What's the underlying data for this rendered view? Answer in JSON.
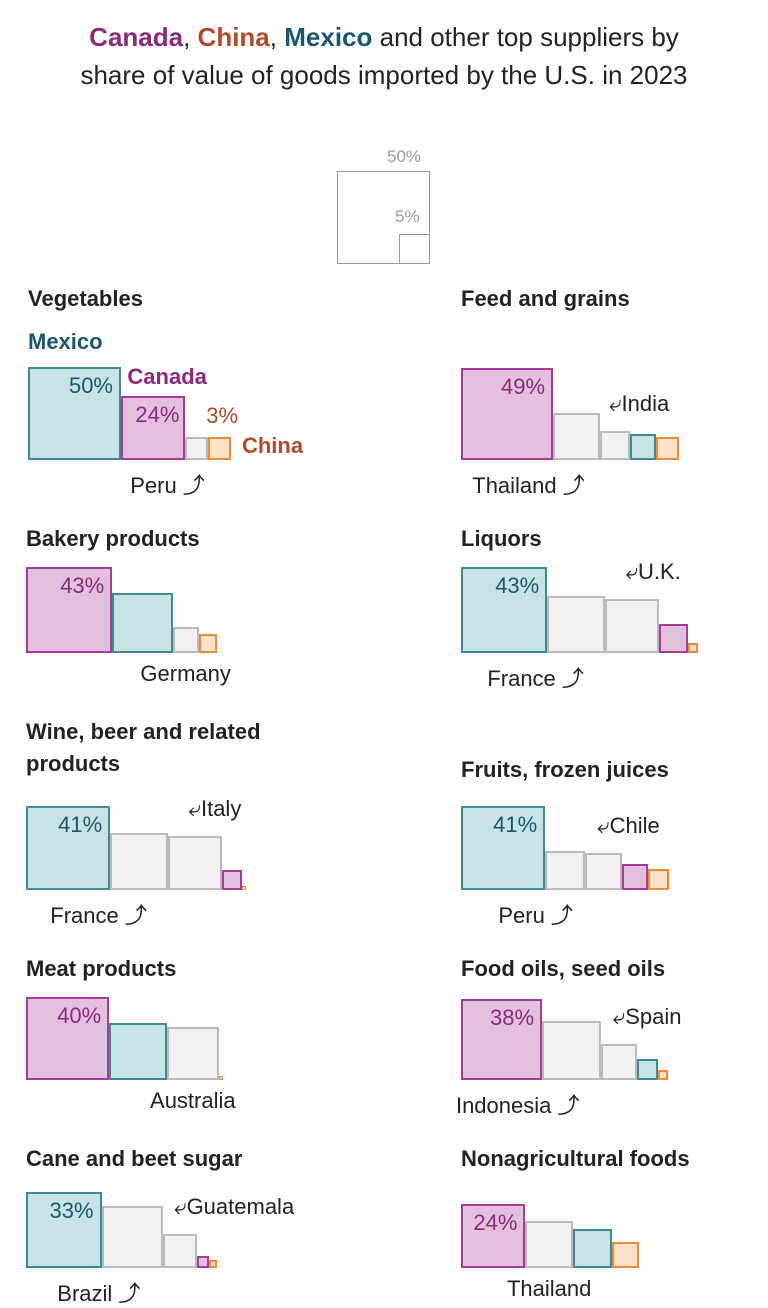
{
  "title": {
    "canada": "Canada",
    "sep1": ", ",
    "china": "China",
    "sep2": ", ",
    "mexico": "Mexico",
    "rest1": " and other top suppliers by",
    "line2": "share of value of goods imported by the U.S. in 2023"
  },
  "legend": {
    "large": "50%",
    "small": "5%"
  },
  "colors": {
    "Canada": {
      "fill": "#e3c0dd",
      "stroke": "#a63b9b",
      "text": "#8a2a7f"
    },
    "Mexico": {
      "fill": "#c7e3e5",
      "stroke": "#3d8b96",
      "text": "#1b5870"
    },
    "China": {
      "fill": "#fde1c7",
      "stroke": "#ee8b3c",
      "text": "#b04a2a"
    },
    "Other": {
      "fill": "#f2f2f2",
      "stroke": "#bbbbbb",
      "text": "#222222"
    }
  },
  "chart_data": [
    {
      "type": "proportional-squares",
      "title": "Vegetables",
      "bars": [
        {
          "country": "Mexico",
          "share": 50,
          "pct": "50%"
        },
        {
          "country": "Canada",
          "share": 24,
          "pct": "24%"
        },
        {
          "country": "Other",
          "share": 3,
          "label": "Peru"
        },
        {
          "country": "China",
          "share": 3,
          "pct": "3%"
        }
      ],
      "callouts": {
        "Mexico": "Mexico",
        "Canada": "Canada",
        "China": "China"
      }
    },
    {
      "type": "proportional-squares",
      "title": "Feed and grains",
      "bars": [
        {
          "country": "Canada",
          "share": 49,
          "pct": "49%"
        },
        {
          "country": "Other",
          "share": 13,
          "label": "Thailand"
        },
        {
          "country": "Other",
          "share": 5,
          "label": "India"
        },
        {
          "country": "Mexico",
          "share": 4
        },
        {
          "country": "China",
          "share": 3
        }
      ]
    },
    {
      "type": "proportional-squares",
      "title": "Bakery products",
      "bars": [
        {
          "country": "Canada",
          "share": 43,
          "pct": "43%"
        },
        {
          "country": "Mexico",
          "share": 21
        },
        {
          "country": "Other",
          "share": 4,
          "label": "Germany"
        },
        {
          "country": "China",
          "share": 2
        }
      ]
    },
    {
      "type": "proportional-squares",
      "title": "Liquors",
      "bars": [
        {
          "country": "Mexico",
          "share": 43,
          "pct": "43%"
        },
        {
          "country": "Other",
          "share": 19,
          "label": "France"
        },
        {
          "country": "Other",
          "share": 17,
          "label": "U.K."
        },
        {
          "country": "Canada",
          "share": 5
        },
        {
          "country": "China",
          "share": 0.6
        }
      ]
    },
    {
      "type": "proportional-squares",
      "title": "Wine, beer and related products",
      "bars": [
        {
          "country": "Mexico",
          "share": 41,
          "pct": "41%"
        },
        {
          "country": "Other",
          "share": 19,
          "label": "France"
        },
        {
          "country": "Other",
          "share": 17,
          "label": "Italy"
        },
        {
          "country": "Canada",
          "share": 2.3
        },
        {
          "country": "China",
          "share": 0.1
        }
      ]
    },
    {
      "type": "proportional-squares",
      "title": "Fruits, frozen juices",
      "bars": [
        {
          "country": "Mexico",
          "share": 41,
          "pct": "41%"
        },
        {
          "country": "Other",
          "share": 9,
          "label": "Peru"
        },
        {
          "country": "Other",
          "share": 8,
          "label": "Chile"
        },
        {
          "country": "Canada",
          "share": 4
        },
        {
          "country": "China",
          "share": 2.5
        }
      ]
    },
    {
      "type": "proportional-squares",
      "title": "Meat products",
      "bars": [
        {
          "country": "Canada",
          "share": 40,
          "pct": "40%"
        },
        {
          "country": "Mexico",
          "share": 19
        },
        {
          "country": "Other",
          "share": 16,
          "label": "Australia"
        },
        {
          "country": "China",
          "share": 0.1
        }
      ]
    },
    {
      "type": "proportional-squares",
      "title": "Food oils, seed oils",
      "bars": [
        {
          "country": "Canada",
          "share": 38,
          "pct": "38%"
        },
        {
          "country": "Other",
          "share": 20,
          "label": "Indonesia"
        },
        {
          "country": "Other",
          "share": 7.5,
          "label": "Spain"
        },
        {
          "country": "Mexico",
          "share": 2.5
        },
        {
          "country": "China",
          "share": 0.6
        }
      ]
    },
    {
      "type": "proportional-squares",
      "title": "Cane and beet sugar",
      "bars": [
        {
          "country": "Mexico",
          "share": 33,
          "pct": "33%"
        },
        {
          "country": "Other",
          "share": 22,
          "label": "Brazil"
        },
        {
          "country": "Other",
          "share": 6.7,
          "label": "Guatemala"
        },
        {
          "country": "Canada",
          "share": 0.8
        },
        {
          "country": "China",
          "share": 0.4
        }
      ]
    },
    {
      "type": "proportional-squares",
      "title": "Nonagricultural foods",
      "bars": [
        {
          "country": "Canada",
          "share": 24,
          "pct": "24%"
        },
        {
          "country": "Other",
          "share": 13,
          "label": "Thailand"
        },
        {
          "country": "Mexico",
          "share": 9
        },
        {
          "country": "China",
          "share": 4
        }
      ]
    }
  ]
}
